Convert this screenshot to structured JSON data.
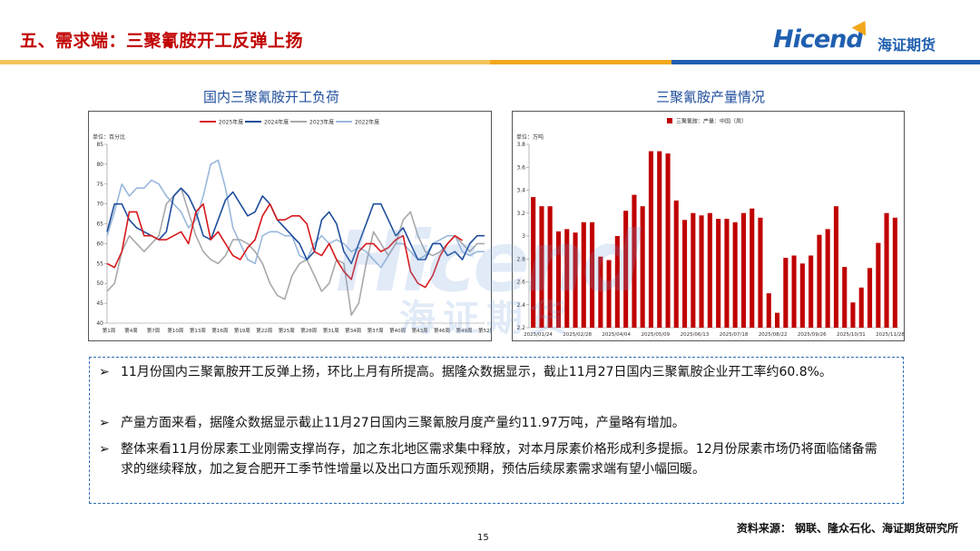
{
  "slide": {
    "title": "五、需求端：三聚氰胺开工反弹上扬",
    "logo_text": "Hicend",
    "logo_cn": "海证期货",
    "watermark": "Hicend",
    "watermark_cn": "海证期货",
    "page_number": "15",
    "source": "资料来源：  钢联、隆众石化、海证期货研究所",
    "accent_colors": [
      "#f2a81d",
      "#1f5fb0",
      "#c00000"
    ]
  },
  "bullets": [
    {
      "marker": "➢",
      "text": "11月份国内三聚氰胺开工反弹上扬，环比上月有所提高。据隆众数据显示，截止11月27日国内三聚氰胺企业开工率约60.8%。"
    },
    {
      "marker": "➢",
      "text": "产量方面来看，据隆众数据显示截止11月27日国内三聚氰胺月度产量约11.97万吨，产量略有增加。"
    },
    {
      "marker": "➢",
      "text": "整体来看11月份尿素工业刚需支撑尚存，加之东北地区需求集中释放，对本月尿素价格形成利多提振。12月份尿素市场仍将面临储备需求的继续释放，加之复合肥开工季节性增量以及出口方面乐观预期，预估后续尿素需求端有望小幅回暖。"
    }
  ],
  "chart_data": [
    {
      "type": "line",
      "title": "国内三聚氰胺开工负荷",
      "unit": "单位：百分比",
      "legend_position": "top",
      "ylim": [
        40,
        85
      ],
      "yticks": [
        40,
        45,
        50,
        55,
        60,
        65,
        70,
        75,
        80,
        85
      ],
      "xtick_labels": [
        "第1周",
        "第4周",
        "第7周",
        "第10周",
        "第13周",
        "第16周",
        "第19周",
        "第22周",
        "第25周",
        "第28周",
        "第31周",
        "第34周",
        "第37周",
        "第40周",
        "第43周",
        "第46周",
        "第49周",
        "第52周"
      ],
      "x": [
        1,
        2,
        3,
        4,
        5,
        6,
        7,
        8,
        9,
        10,
        11,
        12,
        13,
        14,
        15,
        16,
        17,
        18,
        19,
        20,
        21,
        22,
        23,
        24,
        25,
        26,
        27,
        28,
        29,
        30,
        31,
        32,
        33,
        34,
        35,
        36,
        37,
        38,
        39,
        40,
        41,
        42,
        43,
        44,
        45,
        46,
        47,
        48,
        49,
        50,
        51,
        52
      ],
      "series": [
        {
          "name": "2025年度",
          "color": "#d7191c",
          "values": [
            55,
            54,
            58,
            68,
            68,
            62,
            62,
            61,
            61,
            62,
            63,
            60,
            68,
            70,
            61,
            63,
            60,
            57,
            56,
            59,
            61,
            67,
            70,
            66,
            66,
            67,
            67,
            65,
            58,
            57,
            60,
            56,
            53,
            51,
            58,
            60,
            60,
            58,
            59,
            61,
            62,
            53,
            50,
            49,
            52,
            57,
            60,
            62,
            60.8,
            null,
            null,
            null
          ]
        },
        {
          "name": "2024年度",
          "color": "#1f4e9c",
          "values": [
            63,
            70,
            70,
            66,
            64,
            63,
            62,
            61,
            63,
            72,
            74,
            72,
            68,
            62,
            61,
            66,
            71,
            73,
            70,
            67,
            68,
            72,
            70,
            66,
            64,
            62,
            60,
            56,
            58,
            66,
            68,
            65,
            58,
            55,
            60,
            65,
            70,
            70,
            66,
            62,
            64,
            60,
            56,
            56,
            60,
            60,
            57,
            58,
            56,
            60,
            62,
            62
          ]
        },
        {
          "name": "2023年度",
          "color": "#a7a9ac",
          "values": [
            48,
            50,
            58,
            62,
            60,
            58,
            60,
            62,
            70,
            72,
            74,
            68,
            62,
            58,
            56,
            55,
            57,
            61,
            61,
            60,
            58,
            55,
            50,
            47,
            46,
            52,
            55,
            56,
            52,
            48,
            50,
            56,
            55,
            42,
            45,
            55,
            63,
            60,
            57,
            60,
            66,
            68,
            62,
            58,
            57,
            58,
            60,
            62,
            60,
            58,
            60,
            60
          ]
        },
        {
          "name": "2022年度",
          "color": "#9ab8dc",
          "values": [
            62,
            68,
            75,
            72,
            74,
            74,
            76,
            75,
            72,
            70,
            68,
            64,
            66,
            72,
            80,
            81,
            74,
            64,
            60,
            56,
            55,
            62,
            63,
            63,
            62,
            62,
            57,
            56,
            60,
            62,
            60,
            61,
            60,
            58,
            59,
            58,
            56,
            54,
            57,
            60,
            60,
            58,
            56,
            57,
            60,
            61,
            62,
            62,
            58,
            57,
            58,
            58
          ]
        }
      ]
    },
    {
      "type": "bar",
      "title": "三聚氰胺产量情况",
      "unit": "单位：万吨",
      "legend": "三聚氰胺：产量：中国（周）",
      "legend_position": "top",
      "color": "#c00000",
      "ylim": [
        2.2,
        3.8
      ],
      "yticks": [
        2.2,
        2.4,
        2.6,
        2.8,
        3.0,
        3.2,
        3.4,
        3.6,
        3.8
      ],
      "ytick_labels": [
        "2.2",
        "2.4",
        "2.6",
        "2.8",
        "3",
        "3.2",
        "3.4",
        "3.6",
        "3.8"
      ],
      "xtick_labels": [
        "2025/01/24",
        "2025/02/28",
        "2025/04/04",
        "2025/05/09",
        "2025/06/13",
        "2025/07/18",
        "2025/08/22",
        "2025/09/26",
        "2025/10/31",
        "2025/11/28"
      ],
      "values": [
        3.34,
        3.26,
        3.26,
        3.04,
        3.06,
        3.03,
        3.12,
        3.12,
        2.82,
        2.79,
        3.0,
        3.22,
        3.36,
        3.26,
        3.74,
        3.74,
        3.72,
        3.31,
        3.14,
        3.2,
        3.18,
        3.2,
        3.15,
        3.15,
        3.12,
        3.2,
        3.24,
        3.16,
        2.5,
        2.33,
        2.81,
        2.83,
        2.76,
        2.83,
        3.01,
        3.06,
        3.26,
        2.73,
        2.42,
        2.55,
        2.72,
        2.94,
        3.2,
        3.16
      ]
    }
  ]
}
